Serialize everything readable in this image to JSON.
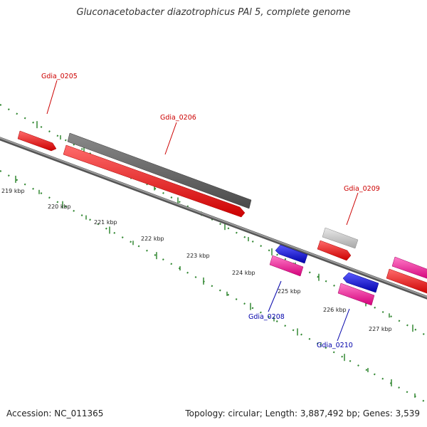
{
  "title": "Gluconacetobacter diazotrophicus PAl 5, complete genome",
  "footer": {
    "accession": "Accession: NC_011365",
    "summary": "Topology: circular; Length: 3,887,492 bp; Genes: 3,539"
  },
  "colors": {
    "forward_cds": "#ff0000",
    "reverse_cds_blue": "#0000ee",
    "reverse_cds_pink": "#ff1aa0",
    "other_feature": "#666666",
    "other_feature_light": "#c8c8c8",
    "backbone": "#888888",
    "ticks": "#338833",
    "label_forward": "#cc0000",
    "label_reverse": "#0000aa",
    "tick_label": "#222222"
  },
  "scale_labels": [
    "219 kbp",
    "220 kbp",
    "221 kbp",
    "222 kbp",
    "223 kbp",
    "224 kbp",
    "225 kbp",
    "226 kbp",
    "227 kbp"
  ],
  "gene_labels": [
    {
      "name": "Gdia_0205",
      "strand": "forward"
    },
    {
      "name": "Gdia_0206",
      "strand": "forward"
    },
    {
      "name": "Gdia_0209",
      "strand": "forward"
    },
    {
      "name": "Gdia_0208",
      "strand": "reverse"
    },
    {
      "name": "Gdia_0210",
      "strand": "reverse"
    }
  ]
}
